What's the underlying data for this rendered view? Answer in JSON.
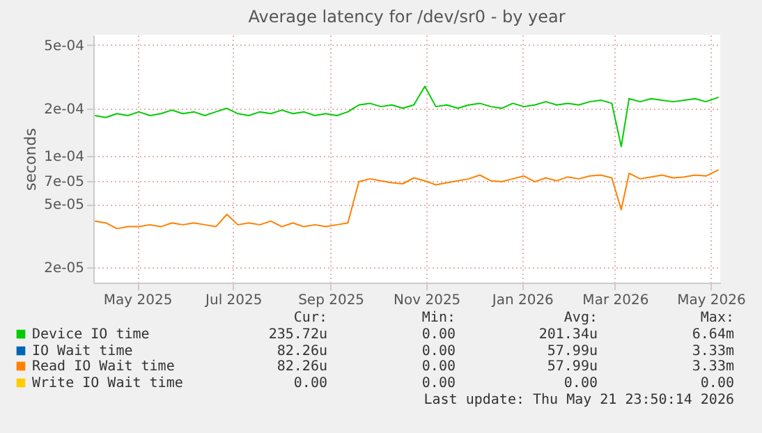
{
  "chart_data": {
    "type": "line",
    "title": "Average latency for /dev/sr0 - by year",
    "ylabel": "seconds",
    "log": "y",
    "grid": true,
    "legend": "bottom",
    "x": [
      "2025-04-19",
      "2025-04-26",
      "2025-05-03",
      "2025-05-10",
      "2025-05-17",
      "2025-05-24",
      "2025-05-31",
      "2025-06-07",
      "2025-06-14",
      "2025-06-21",
      "2025-06-28",
      "2025-07-05",
      "2025-07-12",
      "2025-07-19",
      "2025-07-26",
      "2025-08-02",
      "2025-08-09",
      "2025-08-16",
      "2025-08-23",
      "2025-08-30",
      "2025-09-06",
      "2025-09-13",
      "2025-09-20",
      "2025-09-27",
      "2025-10-04",
      "2025-10-11",
      "2025-10-18",
      "2025-10-25",
      "2025-11-01",
      "2025-11-08",
      "2025-11-15",
      "2025-11-22",
      "2025-11-29",
      "2025-12-06",
      "2025-12-13",
      "2025-12-20",
      "2025-12-27",
      "2026-01-03",
      "2026-01-10",
      "2026-01-17",
      "2026-01-24",
      "2026-01-31",
      "2026-02-07",
      "2026-02-14",
      "2026-02-21",
      "2026-02-28",
      "2026-03-07",
      "2026-03-14",
      "2026-03-20",
      "2026-03-25",
      "2026-04-01",
      "2026-04-08",
      "2026-04-15",
      "2026-04-22",
      "2026-04-29",
      "2026-05-06",
      "2026-05-13",
      "2026-05-21"
    ],
    "xlim": [
      "2025-04-18",
      "2026-05-22"
    ],
    "xticks": [
      {
        "value": "2025-05-16",
        "label": "May 2025"
      },
      {
        "value": "2025-07-16",
        "label": "Jul 2025"
      },
      {
        "value": "2025-09-16",
        "label": "Sep 2025"
      },
      {
        "value": "2025-11-16",
        "label": "Nov 2025"
      },
      {
        "value": "2026-01-16",
        "label": "Jan 2026"
      },
      {
        "value": "2026-03-16",
        "label": "Mar 2026"
      },
      {
        "value": "2026-05-16",
        "label": "May 2026"
      }
    ],
    "ylim": [
      1.6e-05,
      0.00058
    ],
    "yticks": [
      {
        "value": 2e-05,
        "label": "2e-05"
      },
      {
        "value": 5e-05,
        "label": "5e-05"
      },
      {
        "value": 7e-05,
        "label": "7e-05"
      },
      {
        "value": 0.0001,
        "label": "1e-04"
      },
      {
        "value": 0.0002,
        "label": "2e-04"
      },
      {
        "value": 0.0005,
        "label": "5e-04"
      }
    ],
    "series": [
      {
        "name": "Device IO time",
        "color": "#00cc00",
        "values": [
          0.00018,
          0.000175,
          0.000185,
          0.00018,
          0.00019,
          0.00018,
          0.000185,
          0.000195,
          0.000185,
          0.00019,
          0.00018,
          0.00019,
          0.0002,
          0.000185,
          0.00018,
          0.00019,
          0.000185,
          0.000195,
          0.000185,
          0.00019,
          0.00018,
          0.000185,
          0.00018,
          0.00019,
          0.00021,
          0.000215,
          0.000205,
          0.00021,
          0.0002,
          0.00021,
          0.000275,
          0.000205,
          0.00021,
          0.0002,
          0.00021,
          0.000215,
          0.000205,
          0.0002,
          0.000215,
          0.000205,
          0.00021,
          0.00022,
          0.00021,
          0.000215,
          0.00021,
          0.00022,
          0.000225,
          0.000215,
          0.000115,
          0.00023,
          0.00022,
          0.00023,
          0.000225,
          0.00022,
          0.000225,
          0.00023,
          0.00022,
          0.000235
        ]
      },
      {
        "name": "IO Wait time",
        "color": "#0066b3",
        "values": [
          null,
          null,
          null,
          null,
          null,
          null,
          null,
          null,
          null,
          null,
          null,
          null,
          null,
          null,
          null,
          null,
          null,
          null,
          null,
          null,
          null,
          null,
          null,
          null,
          null,
          null,
          null,
          null,
          null,
          null,
          null,
          null,
          null,
          null,
          null,
          null,
          null,
          null,
          null,
          null,
          null,
          null,
          null,
          null,
          null,
          null,
          null,
          null,
          null,
          null,
          null,
          null,
          null,
          null,
          null,
          null,
          null,
          null
        ]
      },
      {
        "name": "Read IO Wait time",
        "color": "#ff8000",
        "values": [
          3.9e-05,
          3.8e-05,
          3.5e-05,
          3.6e-05,
          3.6e-05,
          3.7e-05,
          3.6e-05,
          3.8e-05,
          3.7e-05,
          3.8e-05,
          3.7e-05,
          3.6e-05,
          4.3e-05,
          3.7e-05,
          3.8e-05,
          3.7e-05,
          3.9e-05,
          3.6e-05,
          3.8e-05,
          3.6e-05,
          3.7e-05,
          3.6e-05,
          3.7e-05,
          3.8e-05,
          6.9e-05,
          7.2e-05,
          7e-05,
          6.8e-05,
          6.7e-05,
          7.3e-05,
          7e-05,
          6.6e-05,
          6.8e-05,
          7e-05,
          7.2e-05,
          7.6e-05,
          7e-05,
          6.9e-05,
          7.2e-05,
          7.5e-05,
          6.9e-05,
          7.3e-05,
          7e-05,
          7.4e-05,
          7.2e-05,
          7.5e-05,
          7.6e-05,
          7.3e-05,
          4.6e-05,
          7.8e-05,
          7.2e-05,
          7.4e-05,
          7.6e-05,
          7.3e-05,
          7.4e-05,
          7.6e-05,
          7.5e-05,
          8.2e-05
        ]
      },
      {
        "name": "Write IO Wait time",
        "color": "#ffcc00",
        "values": [
          null,
          null,
          null,
          null,
          null,
          null,
          null,
          null,
          null,
          null,
          null,
          null,
          null,
          null,
          null,
          null,
          null,
          null,
          null,
          null,
          null,
          null,
          null,
          null,
          null,
          null,
          null,
          null,
          null,
          null,
          null,
          null,
          null,
          null,
          null,
          null,
          null,
          null,
          null,
          null,
          null,
          null,
          null,
          null,
          null,
          null,
          null,
          null,
          null,
          null,
          null,
          null,
          null,
          null,
          null,
          null,
          null,
          null
        ]
      }
    ],
    "annotations": [
      "Cur:",
      "Min:",
      "Avg:",
      "Max:",
      "235.72u",
      "0.00",
      "201.34u",
      "6.64m",
      "82.26u",
      "0.00",
      "57.99u",
      "3.33m",
      "82.26u",
      "0.00",
      "57.99u",
      "3.33m",
      "0.00",
      "0.00",
      "0.00",
      "0.00",
      "Last update: Thu May 21 23:50:14 2026"
    ]
  }
}
